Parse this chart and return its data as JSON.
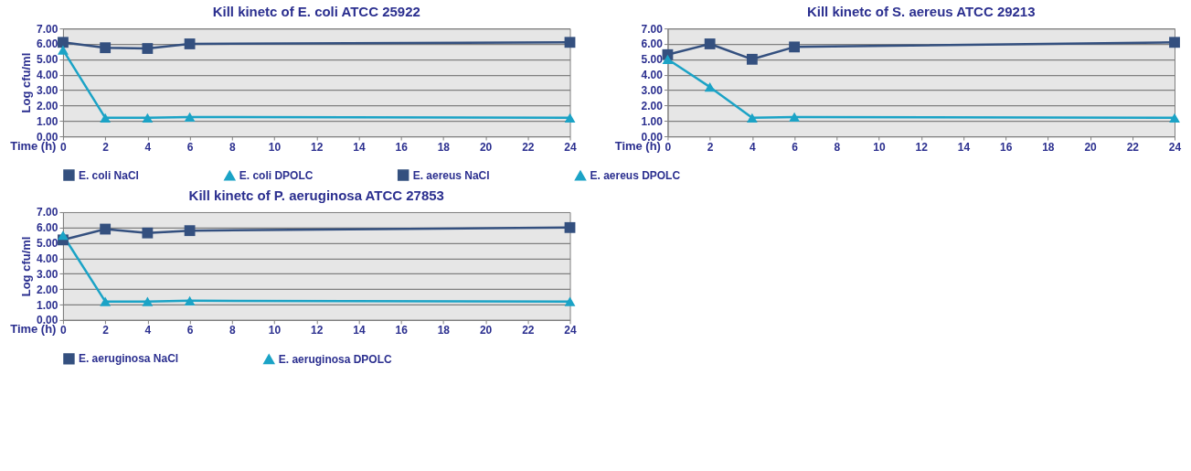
{
  "chart_data": [
    {
      "type": "line",
      "title": "Kill kinetc of E. coli ATCC 25922",
      "xlabel": "Time (h)",
      "ylabel": "Log cfu/ml",
      "xlim": [
        0,
        24
      ],
      "xticks": [
        0,
        2,
        4,
        6,
        8,
        10,
        12,
        14,
        16,
        18,
        20,
        22,
        24
      ],
      "ylim": [
        0,
        7
      ],
      "yticks": [
        {
          "value": 0,
          "label": "0.00"
        },
        {
          "value": 1,
          "label": "1.00"
        },
        {
          "value": 2,
          "label": "2.00"
        },
        {
          "value": 3,
          "label": "3.00"
        },
        {
          "value": 4,
          "label": "4.00"
        },
        {
          "value": 5,
          "label": "5.00"
        },
        {
          "value": 6,
          "label": "6.00"
        },
        {
          "value": 7,
          "label": "7.00"
        }
      ],
      "grid": "y",
      "legend": "bottom",
      "x": [
        0,
        2,
        4,
        6,
        24
      ],
      "series": [
        {
          "name": "E. coli NaCl",
          "color": "#34507f",
          "marker": "square",
          "values": [
            6.1,
            5.75,
            5.7,
            6.0,
            6.1
          ]
        },
        {
          "name": "E. coli DPOLC",
          "color": "#1ba3c6",
          "marker": "triangle",
          "values": [
            5.6,
            1.2,
            1.2,
            1.25,
            1.2
          ]
        }
      ]
    },
    {
      "type": "line",
      "title": "Kill kinetc of S. aereus ATCC 29213",
      "xlabel": "Time (h)",
      "xlim": [
        0,
        24
      ],
      "xticks": [
        0,
        2,
        4,
        6,
        8,
        10,
        12,
        14,
        16,
        18,
        20,
        22,
        24
      ],
      "ylim": [
        0,
        7
      ],
      "yticks": [
        {
          "value": 0,
          "label": "0.00"
        },
        {
          "value": 1,
          "label": "1.00"
        },
        {
          "value": 2,
          "label": "2.00"
        },
        {
          "value": 3,
          "label": "3.00"
        },
        {
          "value": 4,
          "label": "4.00"
        },
        {
          "value": 5,
          "label": "5.00"
        },
        {
          "value": 6,
          "label": "6.00"
        },
        {
          "value": 7,
          "label": "7.00"
        }
      ],
      "grid": "y",
      "legend": "bottom",
      "x": [
        0,
        2,
        4,
        6,
        24
      ],
      "series": [
        {
          "name": "E. aereus NaCl",
          "color": "#34507f",
          "marker": "square",
          "values": [
            5.3,
            6.0,
            5.0,
            5.8,
            6.1
          ]
        },
        {
          "name": "E. aereus DPOLC",
          "color": "#1ba3c6",
          "marker": "triangle",
          "values": [
            5.0,
            3.2,
            1.2,
            1.25,
            1.2
          ]
        }
      ]
    },
    {
      "type": "line",
      "title": "Kill kinetc of P. aeruginosa ATCC 27853",
      "xlabel": "Time (h)",
      "ylabel": "Log cfu/ml",
      "xlim": [
        0,
        24
      ],
      "xticks": [
        0,
        2,
        4,
        6,
        8,
        10,
        12,
        14,
        16,
        18,
        20,
        22,
        24
      ],
      "ylim": [
        0,
        7
      ],
      "yticks": [
        {
          "value": 0,
          "label": "0.00"
        },
        {
          "value": 1,
          "label": "1.00"
        },
        {
          "value": 2,
          "label": "2.00"
        },
        {
          "value": 3,
          "label": "3.00"
        },
        {
          "value": 4,
          "label": "4.00"
        },
        {
          "value": 5,
          "label": "5.00"
        },
        {
          "value": 6,
          "label": "6.00"
        },
        {
          "value": 7,
          "label": "7.00"
        }
      ],
      "grid": "y",
      "legend": "bottom",
      "x": [
        0,
        2,
        4,
        6,
        24
      ],
      "series": [
        {
          "name": "E. aeruginosa NaCl",
          "color": "#34507f",
          "marker": "square",
          "values": [
            5.2,
            5.9,
            5.65,
            5.8,
            6.0
          ]
        },
        {
          "name": "E. aeruginosa DPOLC",
          "color": "#1ba3c6",
          "marker": "triangle",
          "values": [
            5.5,
            1.2,
            1.2,
            1.25,
            1.2
          ]
        }
      ]
    }
  ]
}
